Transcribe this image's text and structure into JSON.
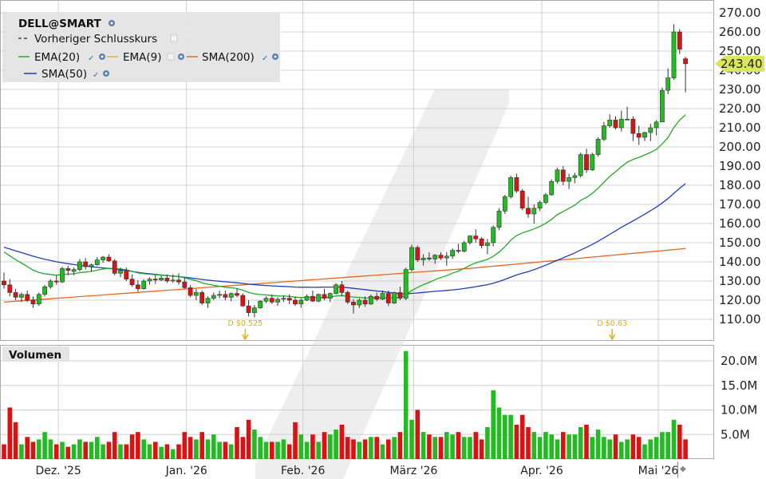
{
  "chart_data": {
    "type": "candlestick",
    "symbol": "DELL@SMART",
    "price_axis": {
      "ylim": [
        100,
        275
      ],
      "ticks": [
        110,
        120,
        130,
        140,
        150,
        160,
        170,
        180,
        190,
        200,
        210,
        220,
        230,
        240,
        250,
        260,
        270
      ],
      "tick_labels": [
        "110.00",
        "120.00",
        "130.00",
        "140.00",
        "150.00",
        "160.00",
        "170.00",
        "180.00",
        "190.00",
        "200.00",
        "210.00",
        "220.00",
        "230.00",
        "240.00",
        "250.00",
        "260.00",
        "270.00"
      ],
      "grid": true
    },
    "volume_axis": {
      "title": "Volumen",
      "ylim": [
        0,
        22500000
      ],
      "ticks": [
        5000000,
        10000000,
        15000000,
        20000000
      ],
      "tick_labels": [
        "5.0M",
        "10.0M",
        "15.0M",
        "20.0M"
      ]
    },
    "x_axis": {
      "labels": [
        {
          "text": "Dez. '25",
          "index": 7
        },
        {
          "text": "Jan. '26",
          "index": 29
        },
        {
          "text": "Feb. '26",
          "index": 49
        },
        {
          "text": "März '26",
          "index": 68
        },
        {
          "text": "Apr. '26",
          "index": 90
        },
        {
          "text": "Mai '26",
          "index": 110
        }
      ]
    },
    "legend": {
      "title": "DELL@SMART",
      "items": [
        {
          "label": "Vorheriger Schlusskurs",
          "color": "#444444",
          "style": "dashed"
        },
        {
          "label": "EMA(20)",
          "color": "#1faa2a"
        },
        {
          "label": "EMA(9)",
          "color": "#f4a340"
        },
        {
          "label": "SMA(200)",
          "color": "#e8661a"
        },
        {
          "label": "SMA(50)",
          "color": "#1f3fb8"
        }
      ]
    },
    "last_price": {
      "label": "243.40",
      "value": 243.4
    },
    "dividends": [
      {
        "index": 41,
        "label": "D $0.525"
      },
      {
        "index": 104,
        "label": "D $0.63"
      }
    ],
    "candles": [
      [
        0,
        130.0,
        134.5,
        126.0,
        128.0,
        3.0
      ],
      [
        1,
        128.0,
        131.0,
        122.0,
        124.0,
        10.5
      ],
      [
        2,
        124.0,
        126.0,
        120.0,
        121.5,
        7.5
      ],
      [
        3,
        121.5,
        124.0,
        119.0,
        123.0,
        3.0
      ],
      [
        4,
        123.0,
        125.0,
        119.0,
        120.0,
        4.5
      ],
      [
        5,
        120.0,
        122.0,
        116.0,
        118.0,
        3.5
      ],
      [
        6,
        118.0,
        124.0,
        117.0,
        123.0,
        4.0
      ],
      [
        7,
        123.0,
        128.0,
        122.0,
        127.0,
        5.5
      ],
      [
        8,
        127.0,
        131.0,
        126.0,
        130.0,
        4.0
      ],
      [
        9,
        130.0,
        133.0,
        128.0,
        129.5,
        3.0
      ],
      [
        10,
        129.5,
        137.5,
        129.0,
        136.5,
        3.5
      ],
      [
        11,
        136.5,
        138.0,
        133.0,
        135.5,
        2.5
      ],
      [
        12,
        135.0,
        137.0,
        133.0,
        136.0,
        3.0
      ],
      [
        13,
        136.0,
        141.5,
        135.0,
        140.0,
        4.0
      ],
      [
        14,
        140.0,
        142.0,
        136.0,
        137.5,
        3.5
      ],
      [
        15,
        137.5,
        139.0,
        135.0,
        138.5,
        3.5
      ],
      [
        16,
        138.5,
        142.5,
        138.0,
        141.0,
        4.5
      ],
      [
        17,
        141.0,
        143.0,
        139.5,
        142.5,
        3.0
      ],
      [
        18,
        142.5,
        144.0,
        140.0,
        140.5,
        3.5
      ],
      [
        19,
        140.5,
        141.5,
        133.0,
        134.0,
        5.5
      ],
      [
        20,
        134.0,
        137.0,
        132.0,
        135.5,
        3.0
      ],
      [
        21,
        135.5,
        137.0,
        130.0,
        131.0,
        3.0
      ],
      [
        22,
        131.0,
        133.5,
        127.0,
        128.0,
        5.0
      ],
      [
        23,
        128.0,
        130.5,
        124.5,
        126.0,
        5.5
      ],
      [
        24,
        126.0,
        131.0,
        125.5,
        130.0,
        4.0
      ],
      [
        25,
        130.0,
        132.0,
        128.0,
        131.0,
        3.0
      ],
      [
        26,
        131.0,
        133.0,
        128.5,
        130.5,
        3.5
      ],
      [
        27,
        130.5,
        133.0,
        130.0,
        131.5,
        2.5
      ],
      [
        28,
        131.5,
        133.5,
        129.0,
        130.0,
        3.0
      ],
      [
        29,
        130.0,
        133.5,
        129.0,
        130.5,
        2.0
      ],
      [
        30,
        130.5,
        134.0,
        128.0,
        129.5,
        3.0
      ],
      [
        31,
        129.5,
        132.0,
        126.0,
        126.5,
        5.5
      ],
      [
        32,
        126.5,
        128.0,
        121.5,
        122.5,
        4.5
      ],
      [
        33,
        122.5,
        126.0,
        120.0,
        124.0,
        4.0
      ],
      [
        34,
        124.0,
        125.0,
        117.5,
        118.5,
        5.5
      ],
      [
        35,
        118.5,
        122.0,
        116.0,
        121.0,
        4.0
      ],
      [
        36,
        121.0,
        124.0,
        120.0,
        122.5,
        5.0
      ],
      [
        37,
        122.5,
        125.0,
        121.0,
        123.0,
        3.5
      ],
      [
        38,
        123.0,
        125.0,
        120.0,
        121.5,
        3.5
      ],
      [
        39,
        121.5,
        124.0,
        119.5,
        123.5,
        3.0
      ],
      [
        40,
        123.5,
        126.0,
        121.5,
        122.5,
        6.5
      ],
      [
        41,
        122.5,
        123.5,
        116.5,
        117.0,
        4.5
      ],
      [
        42,
        117.0,
        120.0,
        111.5,
        113.5,
        8.0
      ],
      [
        43,
        113.5,
        117.5,
        111.0,
        116.0,
        6.0
      ],
      [
        44,
        116.0,
        120.0,
        115.5,
        119.5,
        4.5
      ],
      [
        45,
        119.5,
        122.0,
        118.5,
        121.0,
        3.5
      ],
      [
        46,
        121.0,
        123.0,
        118.0,
        119.0,
        3.5
      ],
      [
        47,
        119.0,
        121.5,
        117.0,
        120.5,
        3.5
      ],
      [
        48,
        120.5,
        122.5,
        119.0,
        121.0,
        4.0
      ],
      [
        49,
        121.0,
        123.0,
        118.0,
        120.0,
        3.0
      ],
      [
        50,
        120.0,
        122.0,
        117.0,
        118.0,
        7.5
      ],
      [
        51,
        118.0,
        121.0,
        116.0,
        120.0,
        5.0
      ],
      [
        52,
        120.0,
        123.0,
        119.5,
        122.0,
        3.5
      ],
      [
        53,
        122.0,
        125.0,
        119.0,
        119.5,
        5.0
      ],
      [
        54,
        119.5,
        123.5,
        119.0,
        123.0,
        3.5
      ],
      [
        55,
        123.0,
        126.0,
        120.0,
        121.0,
        5.5
      ],
      [
        56,
        121.0,
        124.0,
        119.0,
        123.5,
        5.0
      ],
      [
        57,
        123.5,
        129.0,
        123.0,
        128.0,
        6.0
      ],
      [
        58,
        128.0,
        130.0,
        122.0,
        124.0,
        7.0
      ],
      [
        59,
        124.0,
        125.0,
        118.0,
        119.0,
        4.5
      ],
      [
        60,
        119.0,
        120.5,
        113.0,
        117.5,
        4.0
      ],
      [
        61,
        117.5,
        121.0,
        116.0,
        120.0,
        3.5
      ],
      [
        62,
        120.0,
        122.0,
        116.5,
        118.0,
        4.0
      ],
      [
        63,
        118.0,
        123.0,
        117.5,
        122.0,
        4.5
      ],
      [
        64,
        122.0,
        124.0,
        119.5,
        120.5,
        4.5
      ],
      [
        65,
        120.5,
        125.0,
        120.0,
        123.5,
        3.0
      ],
      [
        66,
        123.5,
        125.0,
        117.0,
        118.5,
        4.0
      ],
      [
        67,
        118.5,
        124.5,
        118.0,
        124.0,
        4.5
      ],
      [
        68,
        124.0,
        127.0,
        120.0,
        121.0,
        5.5
      ],
      [
        69,
        121.0,
        137.0,
        120.0,
        136.0,
        22.0
      ],
      [
        70,
        136.0,
        149.0,
        135.0,
        147.5,
        8.0
      ],
      [
        71,
        147.5,
        148.5,
        140.0,
        141.0,
        10.0
      ],
      [
        72,
        141.0,
        144.0,
        138.0,
        142.0,
        5.5
      ],
      [
        73,
        142.0,
        145.0,
        140.5,
        141.5,
        5.0
      ],
      [
        74,
        141.5,
        144.0,
        139.0,
        143.5,
        4.5
      ],
      [
        75,
        143.5,
        145.0,
        141.0,
        142.0,
        4.5
      ],
      [
        76,
        142.0,
        145.0,
        138.0,
        143.0,
        5.5
      ],
      [
        77,
        143.0,
        147.0,
        141.5,
        146.0,
        5.0
      ],
      [
        78,
        146.0,
        149.5,
        144.5,
        145.5,
        5.5
      ],
      [
        79,
        145.5,
        151.0,
        145.0,
        150.0,
        4.5
      ],
      [
        80,
        150.0,
        154.0,
        149.0,
        153.5,
        4.5
      ],
      [
        81,
        153.5,
        157.0,
        150.0,
        152.0,
        5.5
      ],
      [
        82,
        152.0,
        153.0,
        147.0,
        148.5,
        4.0
      ],
      [
        83,
        148.5,
        152.0,
        144.0,
        150.0,
        6.5
      ],
      [
        84,
        150.0,
        159.0,
        148.0,
        158.0,
        14.0
      ],
      [
        85,
        158.0,
        168.0,
        156.5,
        166.5,
        10.5
      ],
      [
        86,
        166.5,
        175.0,
        165.0,
        174.0,
        9.0
      ],
      [
        87,
        174.0,
        185.0,
        173.0,
        184.0,
        9.0
      ],
      [
        88,
        184.0,
        186.0,
        176.0,
        177.0,
        7.0
      ],
      [
        89,
        177.0,
        178.0,
        167.0,
        168.0,
        9.0
      ],
      [
        90,
        168.0,
        174.0,
        163.0,
        165.0,
        6.5
      ],
      [
        91,
        165.0,
        170.0,
        160.0,
        168.0,
        5.5
      ],
      [
        92,
        168.0,
        172.0,
        166.5,
        171.0,
        4.5
      ],
      [
        93,
        171.0,
        176.0,
        170.0,
        175.0,
        5.5
      ],
      [
        94,
        175.0,
        183.0,
        174.5,
        182.0,
        5.0
      ],
      [
        95,
        182.0,
        189.0,
        181.0,
        188.0,
        4.0
      ],
      [
        96,
        188.0,
        190.0,
        180.0,
        182.0,
        5.5
      ],
      [
        97,
        182.0,
        186.0,
        178.0,
        184.0,
        5.0
      ],
      [
        98,
        184.0,
        186.5,
        181.0,
        185.0,
        5.0
      ],
      [
        99,
        185.0,
        197.0,
        184.0,
        196.0,
        6.5
      ],
      [
        100,
        196.0,
        199.0,
        186.5,
        188.0,
        7.0
      ],
      [
        101,
        188.0,
        197.0,
        187.5,
        196.0,
        4.5
      ],
      [
        102,
        196.0,
        205.0,
        195.0,
        204.0,
        6.0
      ],
      [
        103,
        204.0,
        213.0,
        203.0,
        211.0,
        4.5
      ],
      [
        104,
        211.0,
        217.0,
        210.0,
        214.0,
        4.0
      ],
      [
        105,
        214.0,
        216.0,
        209.0,
        210.0,
        5.0
      ],
      [
        106,
        210.0,
        219.0,
        208.0,
        214.5,
        3.5
      ],
      [
        107,
        214.5,
        221.0,
        214.0,
        214.5,
        4.0
      ],
      [
        108,
        214.5,
        216.0,
        203.0,
        207.0,
        5.0
      ],
      [
        109,
        207.0,
        211.0,
        201.0,
        205.0,
        4.5
      ],
      [
        110,
        205.0,
        208.0,
        203.0,
        207.5,
        3.0
      ],
      [
        111,
        207.5,
        212.0,
        203.0,
        210.0,
        4.0
      ],
      [
        112,
        210.0,
        214.0,
        206.0,
        213.0,
        4.5
      ],
      [
        113,
        213.0,
        231.0,
        213.0,
        229.5,
        5.5
      ],
      [
        114,
        229.5,
        241.0,
        227.5,
        236.0,
        5.5
      ],
      [
        115,
        236.0,
        264.0,
        235.0,
        260.0,
        8.0
      ],
      [
        116,
        260.0,
        261.5,
        248.5,
        251.0,
        7.0
      ],
      [
        117,
        246.0,
        247.0,
        228.5,
        243.4,
        4.0
      ]
    ],
    "volume_unit_per_candle_value": 1000000
  }
}
